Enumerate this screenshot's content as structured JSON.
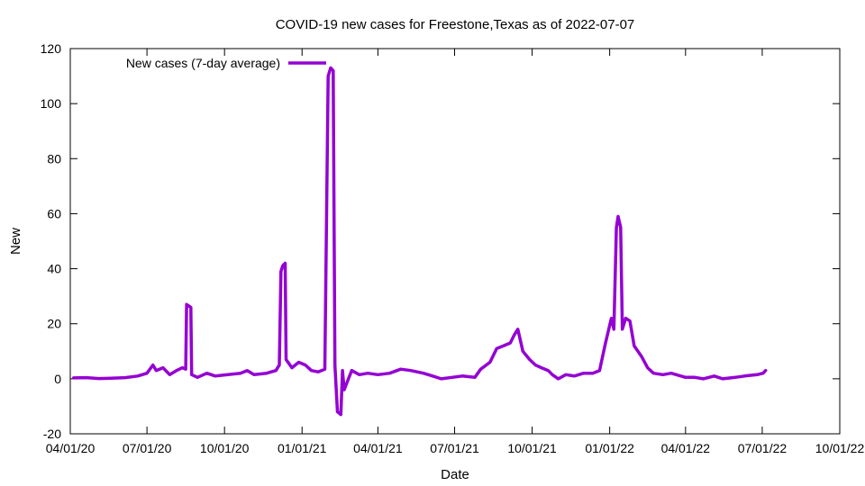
{
  "chart_data": {
    "type": "line",
    "title": "COVID-19 new cases for Freestone,Texas as of 2022-07-07",
    "xlabel": "Date",
    "ylabel": "New",
    "ylim": [
      -20,
      120
    ],
    "yticks": [
      -20,
      0,
      20,
      40,
      60,
      80,
      100,
      120
    ],
    "xlim": [
      "2020-04-01",
      "2022-10-01"
    ],
    "xticks": [
      {
        "date": "2020-04-01",
        "label": "04/01/20"
      },
      {
        "date": "2020-07-01",
        "label": "07/01/20"
      },
      {
        "date": "2020-10-01",
        "label": "10/01/20"
      },
      {
        "date": "2021-01-01",
        "label": "01/01/21"
      },
      {
        "date": "2021-04-01",
        "label": "04/01/21"
      },
      {
        "date": "2021-07-01",
        "label": "07/01/21"
      },
      {
        "date": "2021-10-01",
        "label": "10/01/21"
      },
      {
        "date": "2022-01-01",
        "label": "01/01/22"
      },
      {
        "date": "2022-04-01",
        "label": "04/01/22"
      },
      {
        "date": "2022-07-01",
        "label": "07/01/22"
      },
      {
        "date": "2022-10-01",
        "label": "10/01/22"
      }
    ],
    "grid": false,
    "legend_position": "top-left",
    "series": [
      {
        "name": "New cases (7-day average)",
        "color": "#9400d3",
        "points": [
          [
            "2020-04-05",
            0.3
          ],
          [
            "2020-04-20",
            0.4
          ],
          [
            "2020-05-05",
            0.1
          ],
          [
            "2020-05-20",
            0.2
          ],
          [
            "2020-06-05",
            0.4
          ],
          [
            "2020-06-20",
            1.0
          ],
          [
            "2020-07-01",
            2.0
          ],
          [
            "2020-07-08",
            5.0
          ],
          [
            "2020-07-12",
            3.0
          ],
          [
            "2020-07-20",
            4.0
          ],
          [
            "2020-07-28",
            1.5
          ],
          [
            "2020-08-05",
            3.0
          ],
          [
            "2020-08-12",
            4.0
          ],
          [
            "2020-08-16",
            3.5
          ],
          [
            "2020-08-17",
            27.0
          ],
          [
            "2020-08-22",
            26.0
          ],
          [
            "2020-08-23",
            1.5
          ],
          [
            "2020-08-30",
            0.5
          ],
          [
            "2020-09-10",
            2.0
          ],
          [
            "2020-09-20",
            1.0
          ],
          [
            "2020-10-05",
            1.5
          ],
          [
            "2020-10-20",
            2.0
          ],
          [
            "2020-10-28",
            3.0
          ],
          [
            "2020-11-05",
            1.5
          ],
          [
            "2020-11-20",
            2.0
          ],
          [
            "2020-12-01",
            3.0
          ],
          [
            "2020-12-05",
            5.0
          ],
          [
            "2020-12-07",
            39.0
          ],
          [
            "2020-12-09",
            41.0
          ],
          [
            "2020-12-12",
            42.0
          ],
          [
            "2020-12-13",
            7.0
          ],
          [
            "2020-12-20",
            4.0
          ],
          [
            "2020-12-28",
            6.0
          ],
          [
            "2021-01-05",
            5.0
          ],
          [
            "2021-01-12",
            3.0
          ],
          [
            "2021-01-20",
            2.5
          ],
          [
            "2021-01-28",
            3.5
          ],
          [
            "2021-02-01",
            110.0
          ],
          [
            "2021-02-04",
            113.0
          ],
          [
            "2021-02-07",
            112.0
          ],
          [
            "2021-02-09",
            5.0
          ],
          [
            "2021-02-12",
            -12.0
          ],
          [
            "2021-02-16",
            -13.0
          ],
          [
            "2021-02-18",
            3.0
          ],
          [
            "2021-02-20",
            -4.0
          ],
          [
            "2021-02-25",
            0.0
          ],
          [
            "2021-03-01",
            3.0
          ],
          [
            "2021-03-10",
            1.5
          ],
          [
            "2021-03-20",
            2.0
          ],
          [
            "2021-04-01",
            1.5
          ],
          [
            "2021-04-15",
            2.0
          ],
          [
            "2021-04-28",
            3.5
          ],
          [
            "2021-05-10",
            3.0
          ],
          [
            "2021-05-25",
            2.0
          ],
          [
            "2021-06-05",
            1.0
          ],
          [
            "2021-06-15",
            0.0
          ],
          [
            "2021-06-28",
            0.5
          ],
          [
            "2021-07-10",
            1.0
          ],
          [
            "2021-07-25",
            0.5
          ],
          [
            "2021-08-01",
            3.5
          ],
          [
            "2021-08-12",
            6.0
          ],
          [
            "2021-08-20",
            11.0
          ],
          [
            "2021-08-28",
            12.0
          ],
          [
            "2021-09-05",
            13.0
          ],
          [
            "2021-09-10",
            16.0
          ],
          [
            "2021-09-14",
            18.0
          ],
          [
            "2021-09-20",
            10.0
          ],
          [
            "2021-09-28",
            7.0
          ],
          [
            "2021-10-05",
            5.0
          ],
          [
            "2021-10-12",
            4.0
          ],
          [
            "2021-10-20",
            3.0
          ],
          [
            "2021-10-25",
            1.5
          ],
          [
            "2021-11-01",
            0.0
          ],
          [
            "2021-11-10",
            1.5
          ],
          [
            "2021-11-20",
            1.0
          ],
          [
            "2021-12-01",
            2.0
          ],
          [
            "2021-12-12",
            2.0
          ],
          [
            "2021-12-20",
            3.0
          ],
          [
            "2021-12-27",
            13.0
          ],
          [
            "2022-01-03",
            22.0
          ],
          [
            "2022-01-06",
            18.0
          ],
          [
            "2022-01-09",
            55.0
          ],
          [
            "2022-01-11",
            59.0
          ],
          [
            "2022-01-14",
            55.0
          ],
          [
            "2022-01-16",
            18.0
          ],
          [
            "2022-01-20",
            22.0
          ],
          [
            "2022-01-25",
            21.0
          ],
          [
            "2022-01-30",
            12.0
          ],
          [
            "2022-02-08",
            8.0
          ],
          [
            "2022-02-15",
            4.0
          ],
          [
            "2022-02-22",
            2.0
          ],
          [
            "2022-03-05",
            1.5
          ],
          [
            "2022-03-15",
            2.0
          ],
          [
            "2022-04-01",
            0.5
          ],
          [
            "2022-04-12",
            0.5
          ],
          [
            "2022-04-22",
            0.0
          ],
          [
            "2022-05-05",
            1.0
          ],
          [
            "2022-05-15",
            0.0
          ],
          [
            "2022-05-30",
            0.5
          ],
          [
            "2022-06-10",
            1.0
          ],
          [
            "2022-06-25",
            1.5
          ],
          [
            "2022-07-02",
            2.0
          ],
          [
            "2022-07-05",
            3.0
          ]
        ]
      }
    ]
  }
}
